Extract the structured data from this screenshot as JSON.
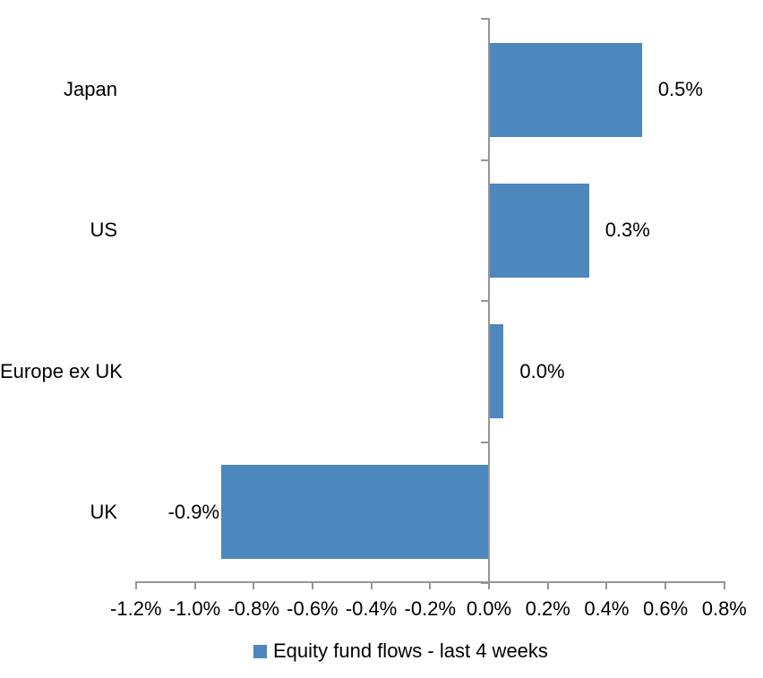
{
  "chart_data": {
    "type": "bar",
    "orientation": "horizontal",
    "title": "",
    "xlabel": "",
    "ylabel": "",
    "grid": false,
    "categories": [
      "Japan",
      "US",
      "Europe ex UK",
      "UK"
    ],
    "series": [
      {
        "name": "Equity fund flows - last 4 weeks",
        "values": [
          0.52,
          0.34,
          0.05,
          -0.91
        ],
        "data_labels": [
          "0.5%",
          "0.3%",
          "0.0%",
          "-0.9%"
        ]
      }
    ],
    "x_axis": {
      "min": -1.2,
      "max": 0.8,
      "step": 0.2,
      "tick_labels": [
        "-1.2%",
        "-1.0%",
        "-0.8%",
        "-0.6%",
        "-0.4%",
        "-0.2%",
        "0.0%",
        "0.2%",
        "0.4%",
        "0.6%",
        "0.8%"
      ]
    },
    "legend_position": "bottom",
    "colors": {
      "bar": "#4C87BE",
      "axis": "#969696",
      "text": "#000000",
      "background": "#FFFFFF"
    }
  }
}
